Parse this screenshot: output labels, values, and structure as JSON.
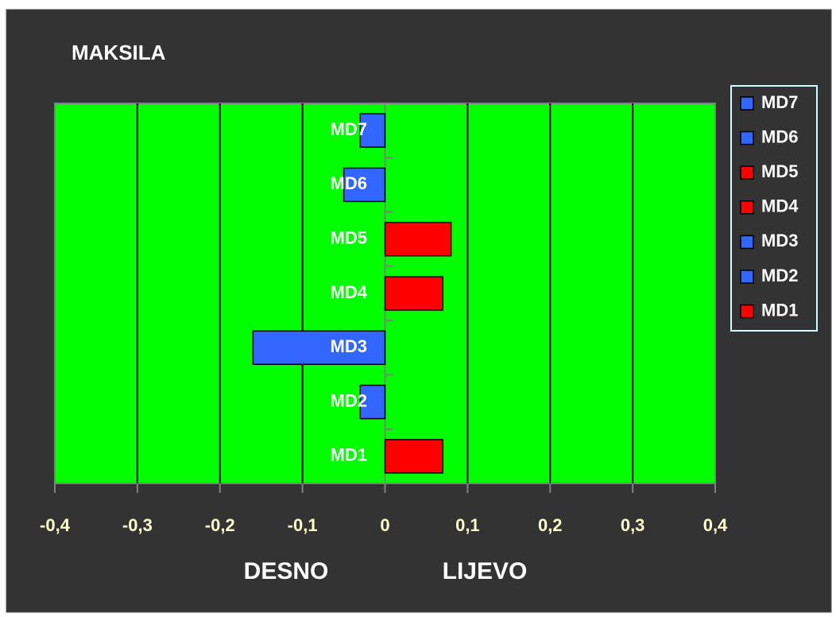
{
  "chart_data": {
    "type": "hbar",
    "title": "MAKSILA",
    "categories": [
      "MD1",
      "MD2",
      "MD3",
      "MD4",
      "MD5",
      "MD6",
      "MD7"
    ],
    "values": [
      0.07,
      -0.03,
      -0.16,
      0.07,
      0.08,
      -0.05,
      -0.03
    ],
    "colors": [
      "#ff0000",
      "#3366ff",
      "#3366ff",
      "#ff0000",
      "#ff0000",
      "#3366ff",
      "#3366ff"
    ],
    "xlim": [
      -0.4,
      0.4
    ],
    "xticks": [
      {
        "value": -0.4,
        "label": "-0,4"
      },
      {
        "value": -0.3,
        "label": "-0,3"
      },
      {
        "value": -0.2,
        "label": "-0,2"
      },
      {
        "value": -0.1,
        "label": "-0,1"
      },
      0,
      {
        "value": 0.1,
        "label": "0,1"
      },
      {
        "value": 0.2,
        "label": "0,2"
      },
      {
        "value": 0.3,
        "label": "0,3"
      },
      {
        "value": 0.4,
        "label": "0,4"
      }
    ],
    "xlabels": [
      "DESNO",
      "LIJEVO"
    ],
    "grid": true,
    "legend": "right"
  }
}
